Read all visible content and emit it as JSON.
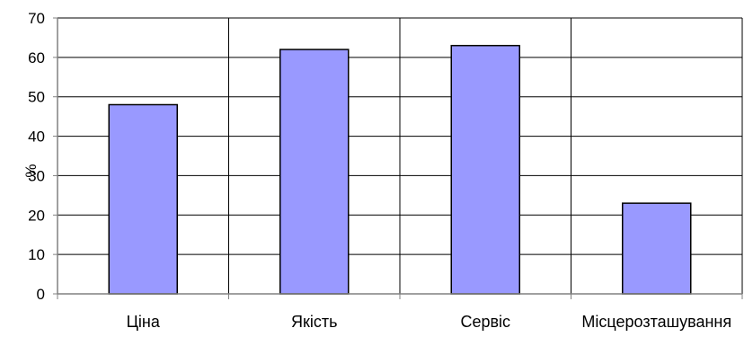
{
  "chart_data": {
    "type": "bar",
    "categories": [
      "Ціна",
      "Якість",
      "Сервіс",
      "Місцерозташування"
    ],
    "values": [
      48,
      62,
      63,
      23
    ],
    "ylabel": "%",
    "ylim": [
      0,
      70
    ],
    "yticks": [
      0,
      10,
      20,
      30,
      40,
      50,
      60,
      70
    ],
    "grid": true,
    "legend": "none",
    "colors": {
      "bar_fill": "#9999ff",
      "bar_stroke": "#000000",
      "grid": "#000000",
      "axis": "#808080"
    }
  }
}
